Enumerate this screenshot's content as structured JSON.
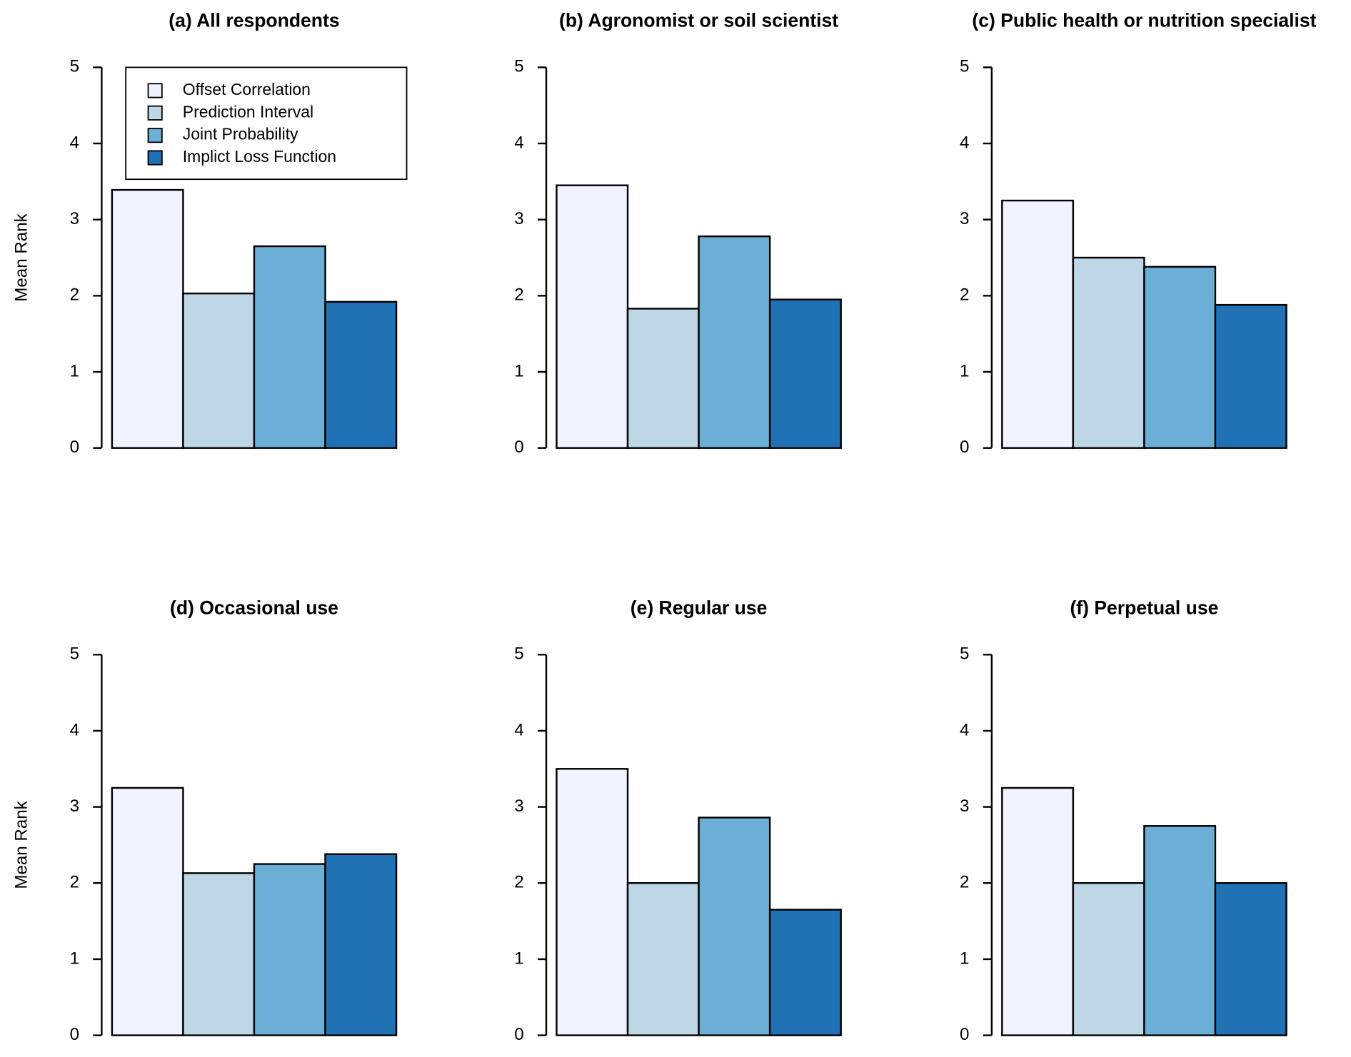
{
  "chart_data": [
    {
      "type": "bar",
      "title": "(a) All respondents",
      "ylabel": "Mean Rank",
      "legend": "top",
      "ylim": [
        0,
        5
      ],
      "yticks": [
        0,
        1,
        2,
        3,
        4,
        5
      ],
      "series": [
        {
          "name": "Offset Correlation",
          "color": "#eff3ff",
          "values": [
            3.39
          ]
        },
        {
          "name": "Prediction Interval",
          "color": "#bdd7e7",
          "values": [
            2.03
          ]
        },
        {
          "name": "Joint Probability",
          "color": "#6baed6",
          "values": [
            2.65
          ]
        },
        {
          "name": "Implict Loss Function",
          "color": "#2171b5",
          "values": [
            1.92
          ]
        }
      ]
    },
    {
      "type": "bar",
      "title": "(b) Agronomist or soil scientist",
      "ylim": [
        0,
        5
      ],
      "yticks": [
        0,
        1,
        2,
        3,
        4,
        5
      ],
      "series": [
        {
          "color": "#eff3ff",
          "values": [
            3.45
          ]
        },
        {
          "color": "#bdd7e7",
          "values": [
            1.83
          ]
        },
        {
          "color": "#6baed6",
          "values": [
            2.78
          ]
        },
        {
          "color": "#2171b5",
          "values": [
            1.95
          ]
        }
      ]
    },
    {
      "type": "bar",
      "title": "(c) Public health or nutrition specialist",
      "ylim": [
        0,
        5
      ],
      "yticks": [
        0,
        1,
        2,
        3,
        4,
        5
      ],
      "series": [
        {
          "color": "#eff3ff",
          "values": [
            3.25
          ]
        },
        {
          "color": "#bdd7e7",
          "values": [
            2.5
          ]
        },
        {
          "color": "#6baed6",
          "values": [
            2.38
          ]
        },
        {
          "color": "#2171b5",
          "values": [
            1.88
          ]
        }
      ]
    },
    {
      "type": "bar",
      "title": "(d) Occasional use",
      "ylabel": "Mean Rank",
      "ylim": [
        0,
        5
      ],
      "yticks": [
        0,
        1,
        2,
        3,
        4,
        5
      ],
      "series": [
        {
          "color": "#eff3ff",
          "values": [
            3.25
          ]
        },
        {
          "color": "#bdd7e7",
          "values": [
            2.13
          ]
        },
        {
          "color": "#6baed6",
          "values": [
            2.25
          ]
        },
        {
          "color": "#2171b5",
          "values": [
            2.38
          ]
        }
      ]
    },
    {
      "type": "bar",
      "title": "(e) Regular use",
      "ylim": [
        0,
        5
      ],
      "yticks": [
        0,
        1,
        2,
        3,
        4,
        5
      ],
      "series": [
        {
          "color": "#eff3ff",
          "values": [
            3.5
          ]
        },
        {
          "color": "#bdd7e7",
          "values": [
            2.0
          ]
        },
        {
          "color": "#6baed6",
          "values": [
            2.86
          ]
        },
        {
          "color": "#2171b5",
          "values": [
            1.65
          ]
        }
      ]
    },
    {
      "type": "bar",
      "title": "(f) Perpetual use",
      "ylim": [
        0,
        5
      ],
      "yticks": [
        0,
        1,
        2,
        3,
        4,
        5
      ],
      "series": [
        {
          "color": "#eff3ff",
          "values": [
            3.25
          ]
        },
        {
          "color": "#bdd7e7",
          "values": [
            2.0
          ]
        },
        {
          "color": "#6baed6",
          "values": [
            2.75
          ]
        },
        {
          "color": "#2171b5",
          "values": [
            2.0
          ]
        }
      ]
    }
  ]
}
